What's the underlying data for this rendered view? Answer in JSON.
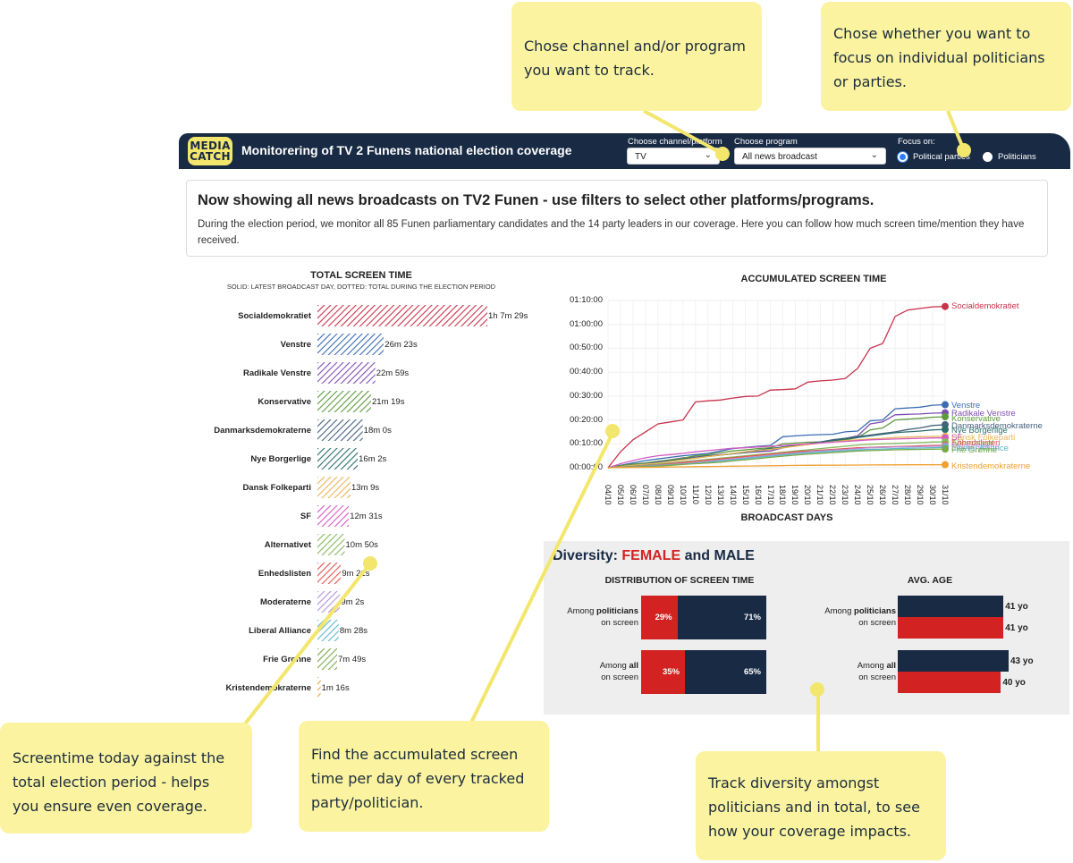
{
  "header": {
    "logo_line1": "MEDIA",
    "logo_line2": "CATCH",
    "title": "Monitorering of TV 2 Funens national election coverage",
    "channel_label": "Choose channel/platform",
    "channel_value": "TV",
    "program_label": "Choose program",
    "program_value": "All news broadcast",
    "focus_label": "Focus on:",
    "focus_options": [
      "Political parties",
      "Politicians"
    ],
    "focus_selected": "Political parties"
  },
  "intro": {
    "heading": "Now showing all news broadcasts on TV2 Funen - use filters to select other platforms/programs.",
    "body": "During the election period, we monitor all 85 Funen parliamentary candidates and the 14 party leaders in our coverage. Here you can follow how much screen time/mention they have received."
  },
  "total_screen_time": {
    "title": "TOTAL SCREEN TIME",
    "subtitle": "SOLID: LATEST BROADCAST DAY, DOTTED: TOTAL DURING THE ELECTION PERIOD"
  },
  "accumulated": {
    "title": "ACCUMULATED SCREEN TIME",
    "xlabel": "BROADCAST DAYS"
  },
  "diversity": {
    "title_prefix": "Diversity: ",
    "female": "FEMALE",
    "and": " and ",
    "male": "MALE",
    "distribution_title": "DISTRIBUTION OF SCREEN TIME",
    "age_title": "AVG. AGE",
    "row1_a": "Among ",
    "row1_b": "politicians",
    "row1_c": "on screen",
    "row2_a": "Among ",
    "row2_b": "all",
    "row2_c": "on screen",
    "female_share_politicians": "29%",
    "male_share_politicians": "71%",
    "female_share_all": "35%",
    "male_share_all": "65%",
    "age_male_politicians": "41 yo",
    "age_female_politicians": "41 yo",
    "age_male_all": "43 yo",
    "age_female_all": "40 yo",
    "female_share_politicians_value": 29,
    "female_share_all_value": 35,
    "age_male_politicians_value": 41,
    "age_female_politicians_value": 41,
    "age_male_all_value": 43,
    "age_female_all_value": 40,
    "color_female": "#d22222",
    "color_male": "#182a44"
  },
  "callouts": {
    "channel": "Chose channel and/or program you want to track.",
    "focus": "Chose whether you want to focus on individual politicians or parties.",
    "screentime": "Screentime today against the total election period - helps you ensure even coverage.",
    "accumulated": "Find the accumulated screen time per day of every tracked party/politician.",
    "diversity": "Track diversity amongst politicians and in total, to see how your coverage impacts."
  },
  "chart_data": [
    {
      "type": "bar",
      "title": "TOTAL SCREEN TIME",
      "subtitle": "SOLID: LATEST BROADCAST DAY, DOTTED: TOTAL DURING THE ELECTION PERIOD",
      "categories": [
        "Socialdemokratiet",
        "Venstre",
        "Radikale Venstre",
        "Konservative",
        "Danmarksdemokraterne",
        "Nye Borgerlige",
        "Dansk Folkeparti",
        "SF",
        "Alternativet",
        "Enhedslisten",
        "Moderaterne",
        "Liberal Alliance",
        "Frie Grønne",
        "Kristendemokraterne"
      ],
      "values_seconds": [
        4049,
        1583,
        1379,
        1279,
        1080,
        962,
        789,
        751,
        650,
        561,
        542,
        508,
        469,
        76
      ],
      "labels": [
        "1h 7m 29s",
        "26m 23s",
        "22m 59s",
        "21m 19s",
        "18m 0s",
        "16m 2s",
        "13m 9s",
        "12m 31s",
        "10m 50s",
        "9m 21s",
        "9m 2s",
        "8m 28s",
        "7m 49s",
        "1m 16s"
      ],
      "colors": [
        "#c8334a",
        "#3b6cb3",
        "#7e4fb1",
        "#5d9a3c",
        "#44617f",
        "#2c6e6a",
        "#e9b55a",
        "#d45bc3",
        "#85b85c",
        "#e2544f",
        "#b591d6",
        "#5bb6c7",
        "#7aa94a",
        "#f0a030"
      ]
    },
    {
      "type": "line",
      "title": "ACCUMULATED SCREEN TIME",
      "xlabel": "BROADCAST DAYS",
      "ylabel": "",
      "x": [
        "04/10",
        "05/10",
        "06/10",
        "07/10",
        "08/10",
        "09/10",
        "10/10",
        "11/10",
        "12/10",
        "13/10",
        "14/10",
        "15/10",
        "16/10",
        "17/10",
        "18/10",
        "19/10",
        "20/10",
        "21/10",
        "22/10",
        "23/10",
        "24/10",
        "25/10",
        "26/10",
        "27/10",
        "28/10",
        "29/10",
        "30/10",
        "31/10"
      ],
      "yticks": [
        "00:00:00",
        "00:10:00",
        "00:20:00",
        "00:30:00",
        "00:40:00",
        "00:50:00",
        "01:00:00",
        "01:10:00"
      ],
      "ylim_seconds": [
        0,
        4200
      ],
      "series": [
        {
          "name": "Socialdemokratiet",
          "color": "#c8334a",
          "values": [
            0,
            400,
            700,
            900,
            1100,
            1150,
            1200,
            1650,
            1680,
            1700,
            1750,
            1790,
            1800,
            1950,
            1960,
            1980,
            2150,
            2180,
            2200,
            2240,
            2500,
            3000,
            3120,
            3800,
            3960,
            4000,
            4040,
            4049
          ]
        },
        {
          "name": "Venstre",
          "color": "#3b6cb3",
          "values": [
            0,
            60,
            120,
            180,
            220,
            260,
            300,
            330,
            360,
            420,
            480,
            510,
            540,
            560,
            780,
            800,
            820,
            830,
            840,
            900,
            920,
            1180,
            1200,
            1480,
            1500,
            1520,
            1570,
            1583
          ]
        },
        {
          "name": "Radikale Venstre",
          "color": "#7e4fb1",
          "values": [
            0,
            40,
            80,
            100,
            150,
            200,
            250,
            270,
            300,
            330,
            350,
            380,
            400,
            420,
            500,
            550,
            600,
            640,
            700,
            740,
            800,
            1100,
            1150,
            1330,
            1340,
            1350,
            1370,
            1379
          ]
        },
        {
          "name": "Konservative",
          "color": "#5d9a3c",
          "values": [
            0,
            50,
            90,
            120,
            160,
            200,
            240,
            300,
            330,
            380,
            420,
            450,
            480,
            500,
            600,
            620,
            640,
            650,
            680,
            700,
            760,
            950,
            1000,
            1200,
            1220,
            1240,
            1270,
            1279
          ]
        },
        {
          "name": "Danmarksdemokraterne",
          "color": "#44617f",
          "values": [
            0,
            30,
            60,
            100,
            150,
            180,
            220,
            260,
            300,
            320,
            350,
            380,
            420,
            460,
            500,
            560,
            600,
            650,
            700,
            740,
            780,
            820,
            860,
            900,
            960,
            1000,
            1060,
            1080
          ]
        },
        {
          "name": "Nye Borgerlige",
          "color": "#2c6e6a",
          "values": [
            0,
            20,
            50,
            80,
            120,
            160,
            200,
            240,
            280,
            320,
            350,
            400,
            440,
            480,
            520,
            560,
            600,
            640,
            680,
            720,
            760,
            800,
            840,
            880,
            900,
            920,
            950,
            962
          ]
        },
        {
          "name": "Dansk Folkeparti",
          "color": "#e9b55a",
          "values": [
            0,
            30,
            60,
            90,
            120,
            160,
            200,
            240,
            280,
            320,
            360,
            400,
            430,
            460,
            500,
            540,
            580,
            620,
            650,
            680,
            700,
            720,
            740,
            760,
            770,
            780,
            785,
            789
          ]
        },
        {
          "name": "SF",
          "color": "#d45bc3",
          "values": [
            0,
            100,
            180,
            250,
            300,
            330,
            360,
            400,
            430,
            460,
            490,
            500,
            520,
            540,
            560,
            580,
            600,
            620,
            640,
            660,
            680,
            700,
            710,
            720,
            730,
            740,
            748,
            751
          ]
        },
        {
          "name": "Alternativet",
          "color": "#85b85c",
          "values": [
            0,
            20,
            40,
            60,
            90,
            120,
            150,
            180,
            210,
            240,
            270,
            300,
            330,
            360,
            390,
            420,
            450,
            480,
            510,
            540,
            570,
            590,
            600,
            610,
            620,
            630,
            645,
            650
          ]
        },
        {
          "name": "Enhedslisten",
          "color": "#e2544f",
          "values": [
            0,
            15,
            30,
            50,
            70,
            100,
            130,
            160,
            190,
            220,
            250,
            280,
            310,
            340,
            370,
            400,
            420,
            440,
            460,
            480,
            500,
            510,
            520,
            530,
            540,
            550,
            558,
            561
          ]
        },
        {
          "name": "Moderaterne",
          "color": "#b591d6",
          "values": [
            0,
            10,
            25,
            40,
            60,
            80,
            100,
            130,
            160,
            190,
            220,
            250,
            280,
            310,
            340,
            370,
            400,
            420,
            440,
            460,
            480,
            500,
            510,
            520,
            525,
            530,
            538,
            542
          ]
        },
        {
          "name": "Liberal Alliance",
          "color": "#5bb6c7",
          "values": [
            0,
            10,
            20,
            35,
            50,
            70,
            90,
            110,
            140,
            170,
            200,
            230,
            260,
            290,
            320,
            350,
            370,
            390,
            410,
            430,
            450,
            460,
            470,
            480,
            490,
            495,
            503,
            508
          ]
        },
        {
          "name": "Frie Grønne",
          "color": "#7aa94a",
          "values": [
            0,
            8,
            16,
            28,
            40,
            60,
            80,
            100,
            120,
            140,
            170,
            200,
            230,
            260,
            290,
            320,
            340,
            360,
            380,
            400,
            420,
            430,
            440,
            450,
            455,
            460,
            466,
            469
          ]
        },
        {
          "name": "Kristendemokraterne",
          "color": "#f0a030",
          "values": [
            0,
            3,
            6,
            10,
            14,
            18,
            22,
            26,
            30,
            34,
            38,
            42,
            46,
            50,
            54,
            58,
            60,
            62,
            64,
            66,
            68,
            70,
            71,
            72,
            73,
            74,
            75,
            76
          ]
        }
      ]
    }
  ]
}
